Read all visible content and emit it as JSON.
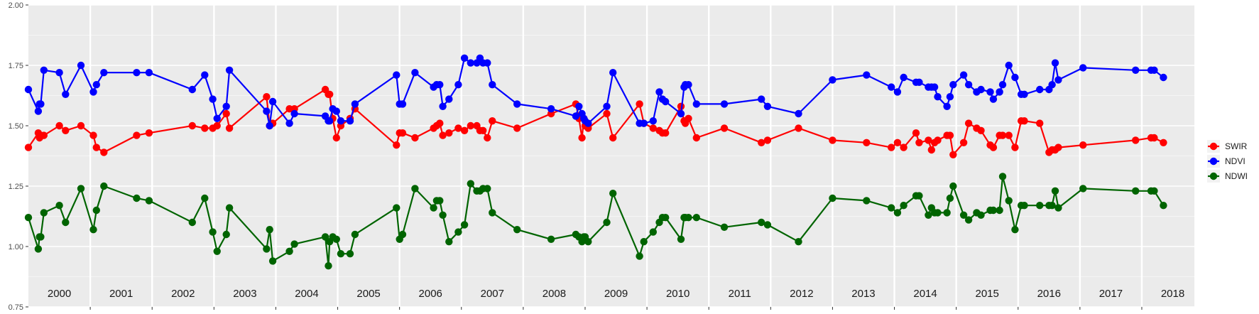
{
  "chart_data": {
    "type": "line",
    "title": "",
    "xlabel": "",
    "ylabel": "",
    "xlim": [
      2000.0,
      2018.85
    ],
    "ylim": [
      0.75,
      2.0
    ],
    "yticks": [
      "0.75",
      "1.00",
      "1.25",
      "1.50",
      "1.75",
      "2.00"
    ],
    "years": [
      "2000",
      "2001",
      "2002",
      "2003",
      "2004",
      "2005",
      "2006",
      "2007",
      "2008",
      "2009",
      "2010",
      "2011",
      "2012",
      "2013",
      "2014",
      "2015",
      "2016",
      "2017",
      "2018"
    ],
    "grid": true,
    "legend_position": "right",
    "dates": [
      2000.0,
      2000.16,
      2000.18,
      2000.2,
      2000.25,
      2000.5,
      2000.6,
      2000.85,
      2001.05,
      2001.1,
      2001.22,
      2001.75,
      2001.95,
      2002.65,
      2002.85,
      2002.98,
      2003.05,
      2003.2,
      2003.25,
      2003.85,
      2003.9,
      2003.95,
      2004.22,
      2004.3,
      2004.8,
      2004.85,
      2004.87,
      2004.92,
      2004.98,
      2005.05,
      2005.2,
      2005.28,
      2005.95,
      2006.0,
      2006.05,
      2006.25,
      2006.55,
      2006.6,
      2006.65,
      2006.7,
      2006.8,
      2006.95,
      2007.05,
      2007.15,
      2007.25,
      2007.3,
      2007.35,
      2007.42,
      2007.5,
      2007.9,
      2008.45,
      2008.85,
      2008.9,
      2008.95,
      2008.98,
      2009.0,
      2009.05,
      2009.35,
      2009.45,
      2009.88,
      2009.95,
      2010.1,
      2010.2,
      2010.25,
      2010.3,
      2010.55,
      2010.6,
      2010.62,
      2010.67,
      2010.8,
      2011.25,
      2011.85,
      2011.95,
      2012.45,
      2013.0,
      2013.55,
      2013.95,
      2014.05,
      2014.15,
      2014.35,
      2014.4,
      2014.55,
      2014.6,
      2014.65,
      2014.7,
      2014.85,
      2014.9,
      2014.95,
      2015.12,
      2015.2,
      2015.33,
      2015.4,
      2015.55,
      2015.6,
      2015.7,
      2015.75,
      2015.85,
      2015.95,
      2016.05,
      2016.1,
      2016.35,
      2016.5,
      2016.55,
      2016.6,
      2016.65,
      2017.05,
      2017.9,
      2018.15,
      2018.2,
      2018.35
    ],
    "series": [
      {
        "name": "SWIR",
        "color": "#ff0000",
        "values": [
          1.41,
          1.47,
          1.45,
          1.46,
          1.46,
          1.5,
          1.48,
          1.5,
          1.46,
          1.41,
          1.39,
          1.46,
          1.47,
          1.5,
          1.49,
          1.49,
          1.5,
          1.55,
          1.49,
          1.62,
          1.5,
          1.51,
          1.57,
          1.57,
          1.65,
          1.63,
          1.63,
          1.53,
          1.45,
          1.5,
          1.53,
          1.57,
          1.42,
          1.47,
          1.47,
          1.45,
          1.49,
          1.5,
          1.51,
          1.46,
          1.47,
          1.49,
          1.48,
          1.5,
          1.5,
          1.48,
          1.48,
          1.45,
          1.52,
          1.49,
          1.55,
          1.59,
          1.53,
          1.45,
          1.53,
          1.5,
          1.49,
          1.55,
          1.45,
          1.59,
          1.51,
          1.49,
          1.48,
          1.47,
          1.47,
          1.58,
          1.52,
          1.51,
          1.53,
          1.45,
          1.49,
          1.43,
          1.44,
          1.49,
          1.44,
          1.43,
          1.41,
          1.43,
          1.41,
          1.47,
          1.43,
          1.44,
          1.4,
          1.43,
          1.44,
          1.46,
          1.46,
          1.38,
          1.43,
          1.51,
          1.49,
          1.48,
          1.42,
          1.41,
          1.46,
          1.46,
          1.46,
          1.41,
          1.52,
          1.52,
          1.51,
          1.39,
          1.4,
          1.4,
          1.41,
          1.42,
          1.44,
          1.45,
          1.45,
          1.43
        ]
      },
      {
        "name": "NDVI",
        "color": "#0000ff",
        "values": [
          1.65,
          1.56,
          1.59,
          1.59,
          1.73,
          1.72,
          1.63,
          1.75,
          1.64,
          1.67,
          1.72,
          1.72,
          1.72,
          1.65,
          1.71,
          1.61,
          1.53,
          1.58,
          1.73,
          1.56,
          1.5,
          1.6,
          1.51,
          1.55,
          1.54,
          1.52,
          1.52,
          1.57,
          1.56,
          1.52,
          1.52,
          1.59,
          1.71,
          1.59,
          1.59,
          1.72,
          1.66,
          1.67,
          1.67,
          1.58,
          1.61,
          1.67,
          1.78,
          1.76,
          1.76,
          1.78,
          1.76,
          1.76,
          1.67,
          1.59,
          1.57,
          1.54,
          1.58,
          1.55,
          1.53,
          1.52,
          1.51,
          1.58,
          1.72,
          1.51,
          1.51,
          1.52,
          1.64,
          1.61,
          1.6,
          1.55,
          1.66,
          1.67,
          1.67,
          1.59,
          1.59,
          1.61,
          1.58,
          1.55,
          1.69,
          1.71,
          1.66,
          1.64,
          1.7,
          1.68,
          1.68,
          1.66,
          1.66,
          1.66,
          1.62,
          1.58,
          1.62,
          1.67,
          1.71,
          1.67,
          1.64,
          1.65,
          1.64,
          1.61,
          1.64,
          1.67,
          1.75,
          1.7,
          1.63,
          1.63,
          1.65,
          1.65,
          1.67,
          1.76,
          1.69,
          1.74,
          1.73,
          1.73,
          1.73,
          1.7
        ]
      },
      {
        "name": "NDWI",
        "color": "#006400",
        "values": [
          1.12,
          0.99,
          1.04,
          1.04,
          1.14,
          1.17,
          1.1,
          1.24,
          1.07,
          1.15,
          1.25,
          1.2,
          1.19,
          1.1,
          1.2,
          1.06,
          0.98,
          1.05,
          1.16,
          0.99,
          1.07,
          0.94,
          0.98,
          1.01,
          1.04,
          0.92,
          1.02,
          1.04,
          1.03,
          0.97,
          0.97,
          1.05,
          1.16,
          1.03,
          1.05,
          1.24,
          1.16,
          1.19,
          1.19,
          1.13,
          1.02,
          1.06,
          1.09,
          1.26,
          1.23,
          1.23,
          1.24,
          1.24,
          1.14,
          1.07,
          1.03,
          1.05,
          1.04,
          1.02,
          1.04,
          1.04,
          1.02,
          1.1,
          1.22,
          0.96,
          1.02,
          1.06,
          1.1,
          1.12,
          1.12,
          1.03,
          1.12,
          1.12,
          1.12,
          1.12,
          1.08,
          1.1,
          1.09,
          1.02,
          1.2,
          1.19,
          1.16,
          1.14,
          1.17,
          1.21,
          1.21,
          1.13,
          1.16,
          1.14,
          1.14,
          1.14,
          1.2,
          1.25,
          1.13,
          1.11,
          1.14,
          1.13,
          1.15,
          1.15,
          1.15,
          1.29,
          1.19,
          1.07,
          1.17,
          1.17,
          1.17,
          1.17,
          1.17,
          1.23,
          1.16,
          1.24,
          1.23,
          1.23,
          1.23,
          1.17
        ]
      }
    ]
  }
}
